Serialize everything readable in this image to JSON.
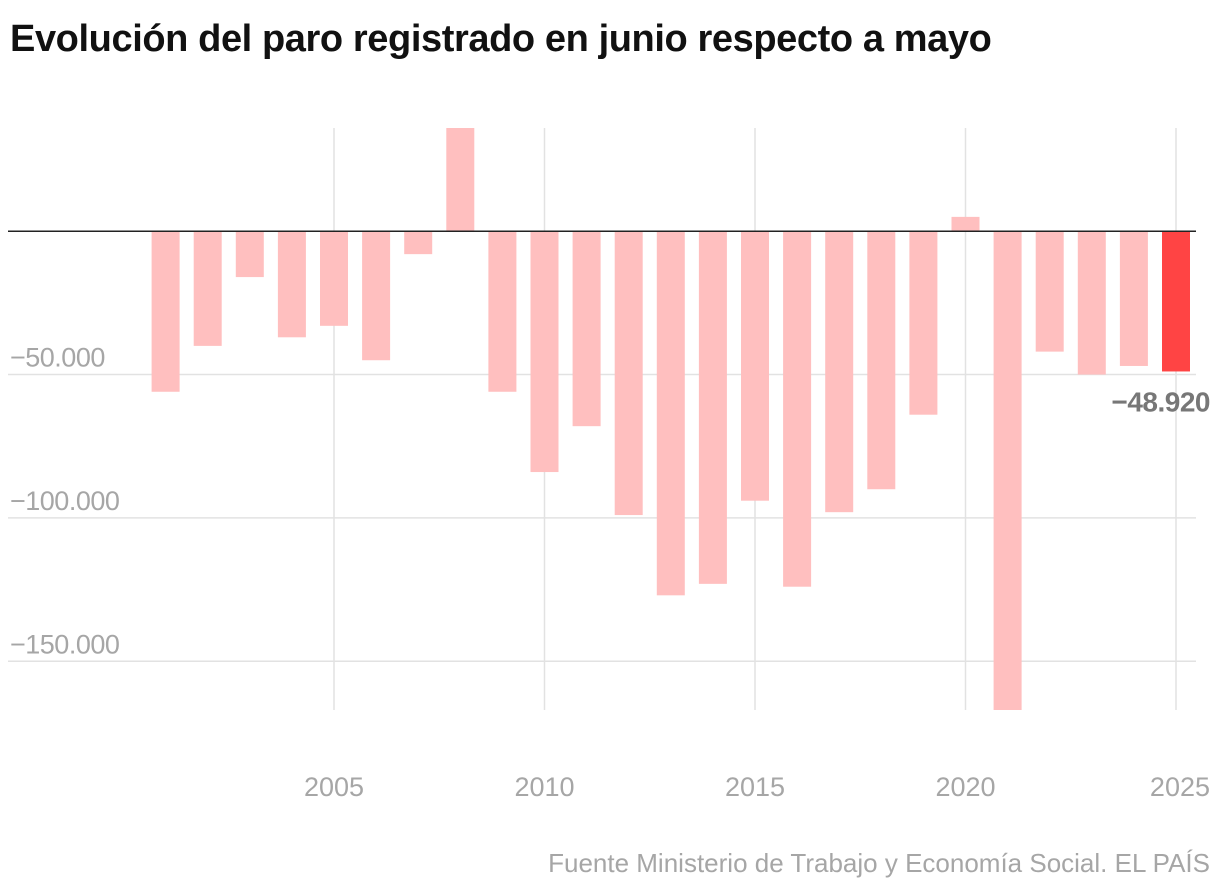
{
  "title": "Evolución del paro registrado en junio respecto a mayo",
  "source": "Fuente Ministerio de Trabajo y Economía Social. EL PAÍS",
  "chart_data": {
    "type": "bar",
    "title": "Evolución del paro registrado en junio respecto a mayo",
    "xlabel": "",
    "ylabel": "",
    "categories": [
      2001,
      2002,
      2003,
      2004,
      2005,
      2006,
      2007,
      2008,
      2009,
      2010,
      2011,
      2012,
      2013,
      2014,
      2015,
      2016,
      2017,
      2018,
      2019,
      2020,
      2021,
      2022,
      2023,
      2024,
      2025
    ],
    "values": [
      -56000,
      -40000,
      -16000,
      -37000,
      -33000,
      -45000,
      -8000,
      36000,
      -56000,
      -84000,
      -68000,
      -99000,
      -127000,
      -123000,
      -94000,
      -124000,
      -98000,
      -90000,
      -64000,
      5000,
      -167000,
      -42000,
      -50000,
      -47000,
      -48920
    ],
    "ylim": [
      -167000,
      36000
    ],
    "y_ticks": [
      {
        "value": -50000,
        "label": "−50.000"
      },
      {
        "value": -100000,
        "label": "−100.000"
      },
      {
        "value": -150000,
        "label": "−150.000"
      }
    ],
    "x_ticks": [
      {
        "value": 2005,
        "label": "2005"
      },
      {
        "value": 2010,
        "label": "2010"
      },
      {
        "value": 2015,
        "label": "2015"
      },
      {
        "value": 2020,
        "label": "2020"
      },
      {
        "value": 2025,
        "label": "2025"
      }
    ],
    "annotation": {
      "year": 2025,
      "label": "−48.920"
    },
    "grid": true,
    "colors": {
      "bar": "#ffbfbf",
      "highlight": "#ff4444",
      "grid": "#e2e2e2",
      "baseline": "#222222",
      "tick_label": "#a6a6a6",
      "annotation": "#777777"
    }
  }
}
